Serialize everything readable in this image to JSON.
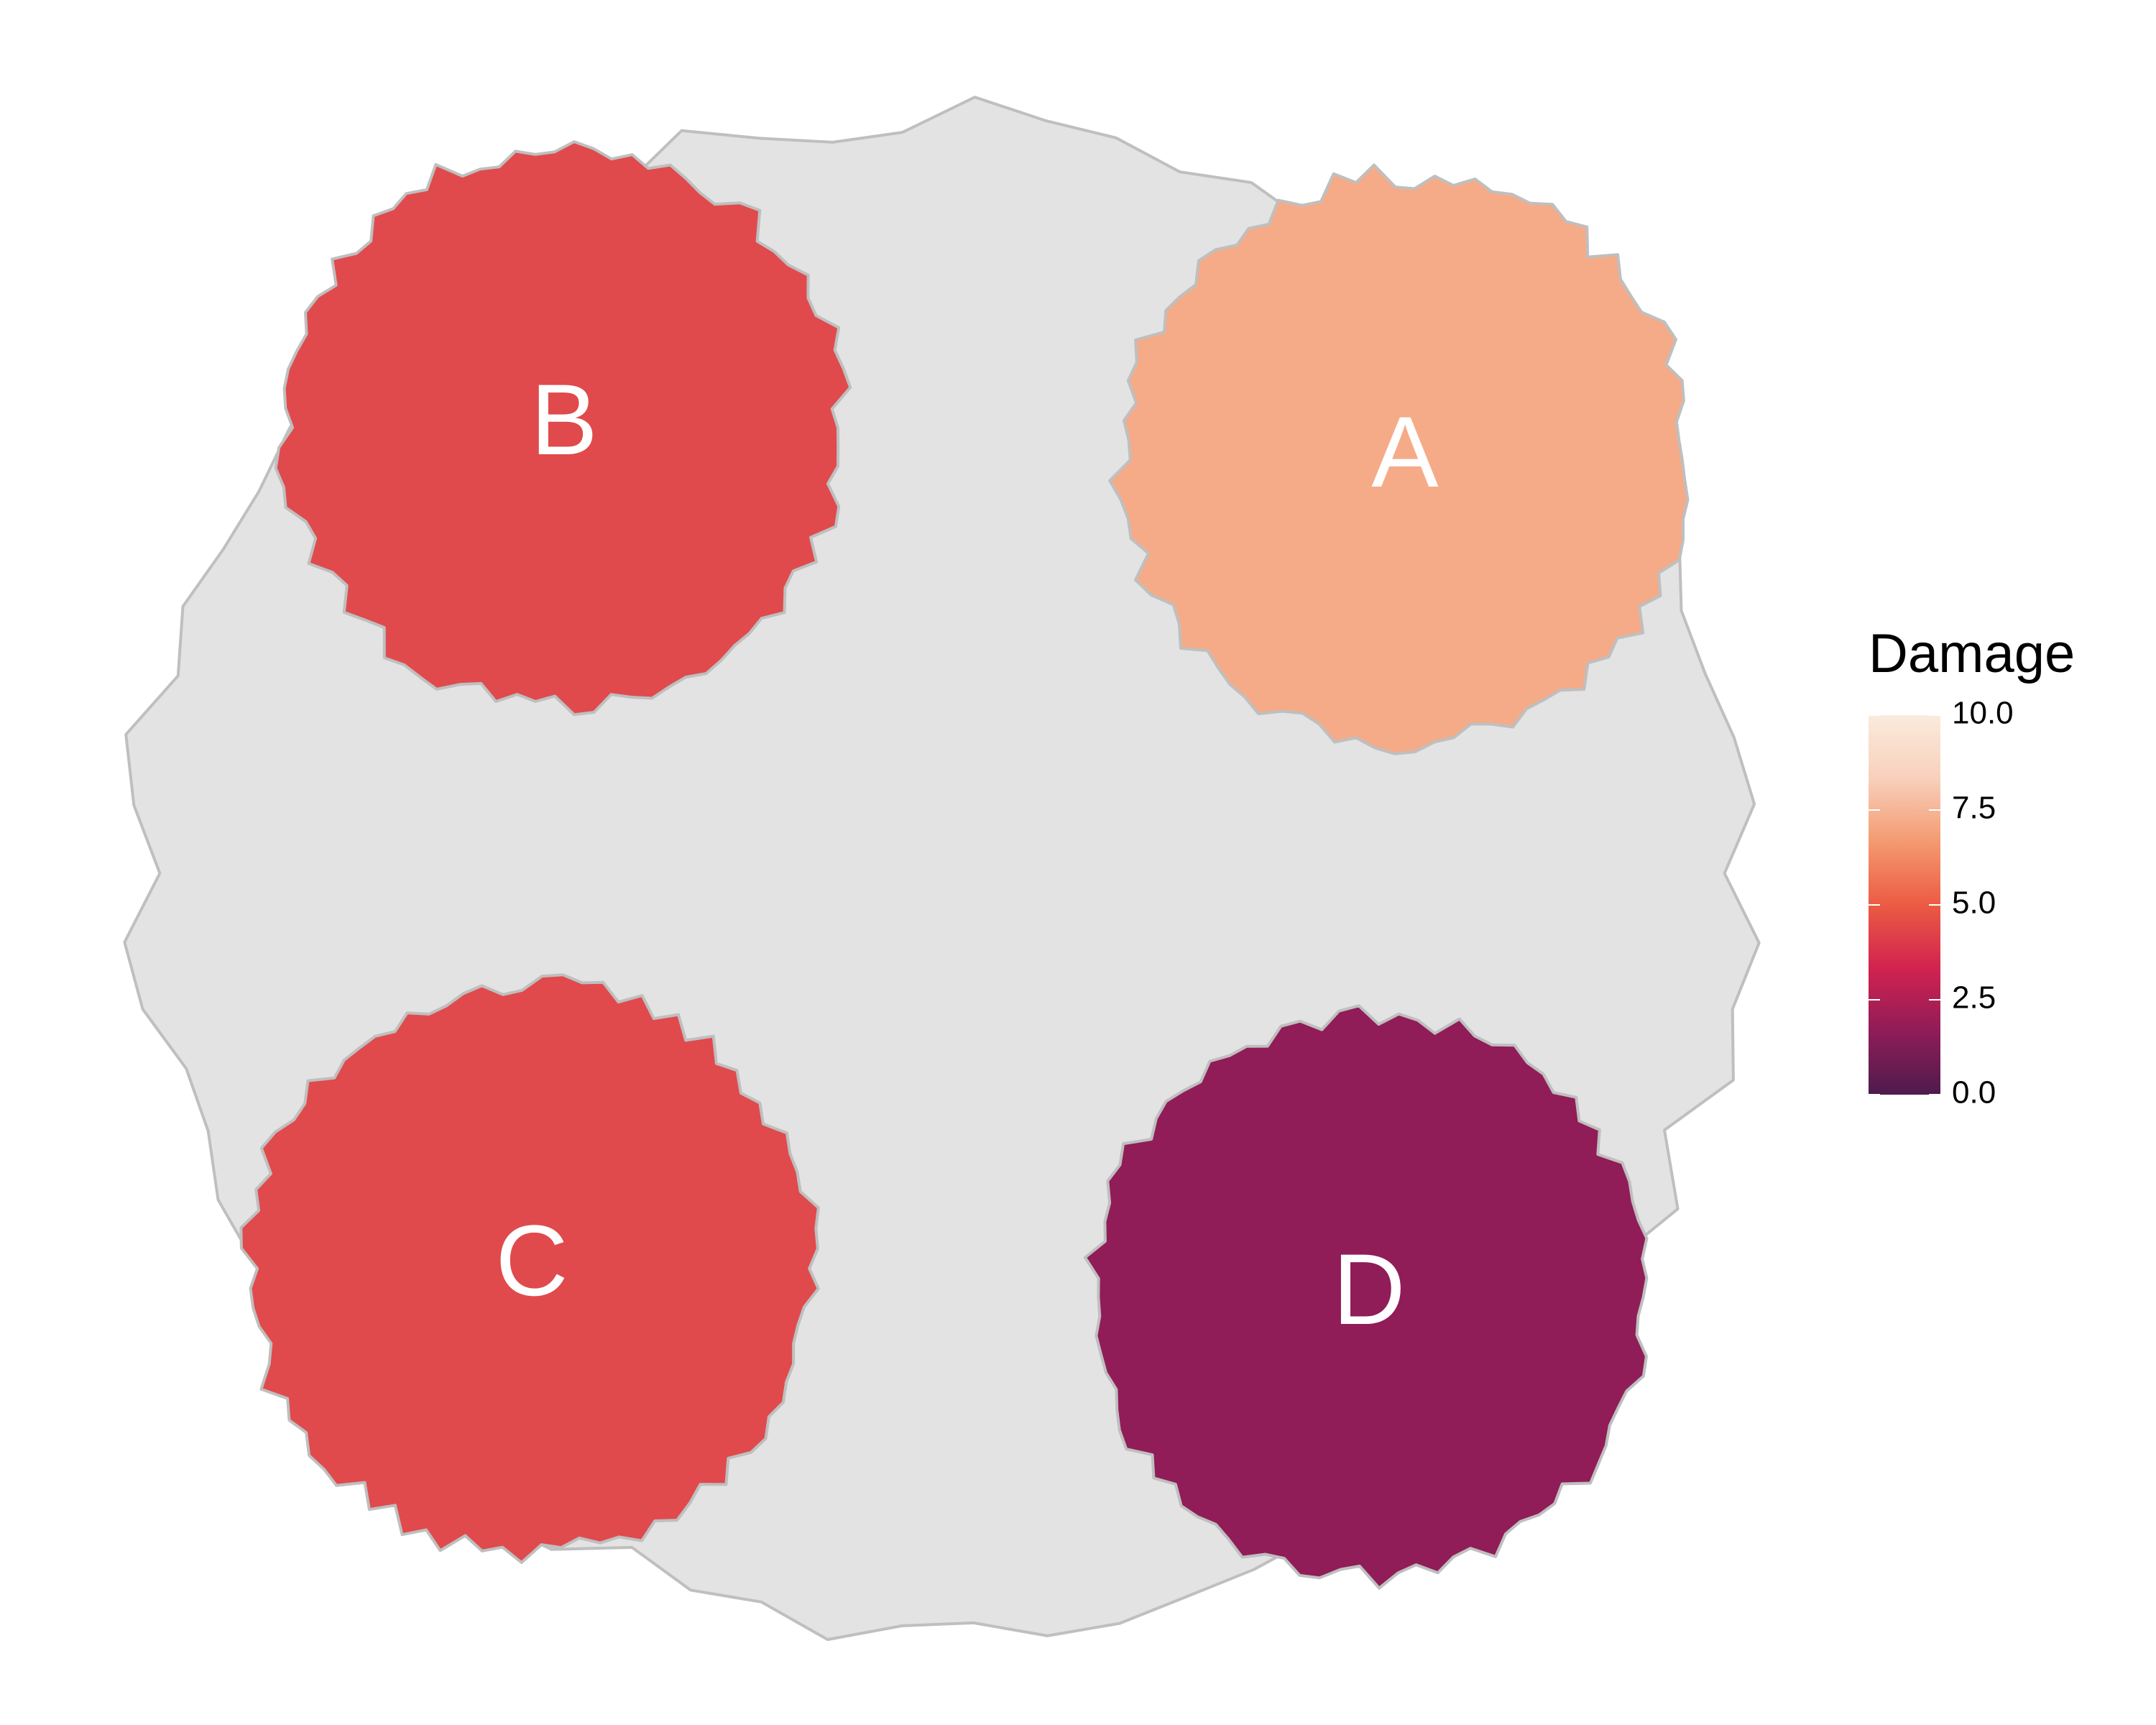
{
  "chart_data": {
    "type": "heatmap",
    "title": "",
    "xlabel": "",
    "ylabel": "",
    "grid": false,
    "background_region_color": "#e3e3e3",
    "outline_color": "#bfbfbf",
    "patches": [
      {
        "label": "A",
        "damage": 8.0,
        "color": "#f5ab87",
        "position": "top-right"
      },
      {
        "label": "B",
        "damage": 5.6,
        "color": "#e04a4c",
        "position": "top-left"
      },
      {
        "label": "C",
        "damage": 5.6,
        "color": "#e04a4c",
        "position": "bottom-left"
      },
      {
        "label": "D",
        "damage": 2.4,
        "color": "#901c58",
        "position": "bottom-right"
      }
    ],
    "legend": {
      "title": "Damage",
      "placement": "right",
      "range": [
        0,
        10
      ],
      "ticks": [
        "0.0",
        "2.5",
        "5.0",
        "7.5",
        "10.0"
      ],
      "tick_values": [
        0,
        2.5,
        5,
        7.5,
        10
      ],
      "gradient": [
        "#4e1b4d",
        "#8f1c58",
        "#d1234f",
        "#ec5b43",
        "#f49a70",
        "#f8d0bc",
        "#faebdd"
      ]
    }
  }
}
